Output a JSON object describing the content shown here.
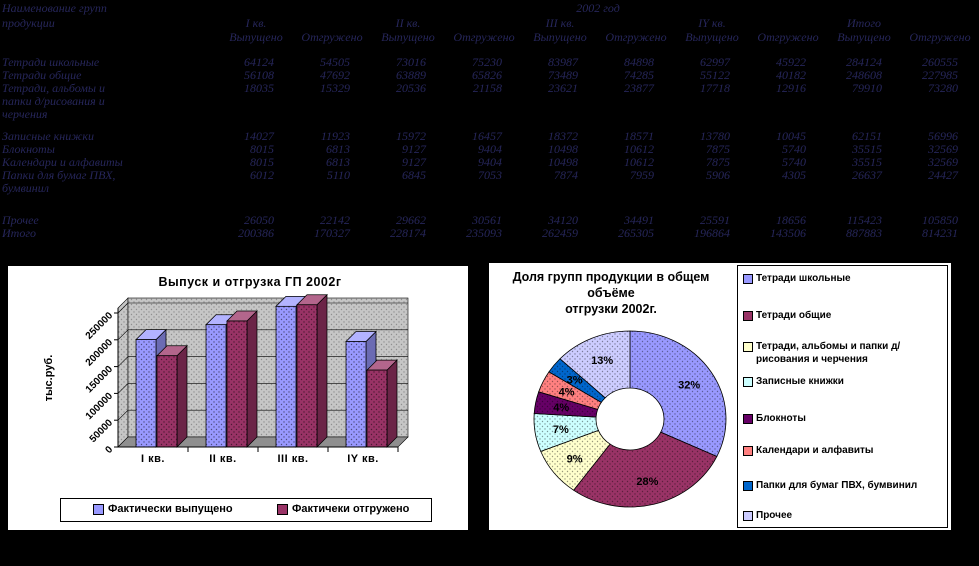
{
  "page": {
    "background": "#000000",
    "table_text_color": "#26265a"
  },
  "table": {
    "name_header_lines": [
      "Наименование групп",
      "продукции"
    ],
    "year_header": "2002 год",
    "quarters": [
      "I кв.",
      "II кв.",
      "III кв.",
      "IY кв.",
      "Итого"
    ],
    "measure_headers": [
      "Выпущено",
      "Отгружено"
    ],
    "rows": [
      {
        "label_lines": [
          "Тетради школьные"
        ],
        "values": [
          64124,
          54505,
          73016,
          75230,
          83987,
          84898,
          62997,
          45922,
          284124,
          260555
        ],
        "gap_after": 0
      },
      {
        "label_lines": [
          "Тетради общие"
        ],
        "values": [
          56108,
          47692,
          63889,
          65826,
          73489,
          74285,
          55122,
          40182,
          248608,
          227985
        ],
        "gap_after": 0
      },
      {
        "label_lines": [
          "Тетради, альбомы и",
          "папки д/рисования и",
          "черчения"
        ],
        "values": [
          18035,
          15329,
          20536,
          21158,
          23621,
          23877,
          17718,
          12916,
          79910,
          73280
        ],
        "gap_after": 9
      },
      {
        "label_lines": [
          "Записные книжки"
        ],
        "values": [
          14027,
          11923,
          15972,
          16457,
          18372,
          18571,
          13780,
          10045,
          62151,
          56996
        ],
        "gap_after": 0
      },
      {
        "label_lines": [
          "Блокноты"
        ],
        "values": [
          8015,
          6813,
          9127,
          9404,
          10498,
          10612,
          7875,
          5740,
          35515,
          32569
        ],
        "gap_after": 0
      },
      {
        "label_lines": [
          "Календари и алфавиты"
        ],
        "values": [
          8015,
          6813,
          9127,
          9404,
          10498,
          10612,
          7875,
          5740,
          35515,
          32569
        ],
        "gap_after": 0
      },
      {
        "label_lines": [
          "Папки для бумаг ПВХ,",
          "бумвинил"
        ],
        "values": [
          6012,
          5110,
          6845,
          7053,
          7874,
          7959,
          5906,
          4305,
          26637,
          24427
        ],
        "gap_after": 19
      },
      {
        "label_lines": [
          "Прочее"
        ],
        "values": [
          26050,
          22142,
          29662,
          30561,
          34120,
          34491,
          25591,
          18656,
          115423,
          105850
        ],
        "gap_after": 0
      },
      {
        "label_lines": [
          "Итого"
        ],
        "values": [
          200386,
          170327,
          228174,
          235093,
          262459,
          265305,
          196864,
          143506,
          887883,
          814231
        ],
        "gap_after": 0
      }
    ]
  },
  "chart_data": [
    {
      "type": "bar",
      "style": "3d",
      "title": "Выпуск и отгрузка ГП 2002г",
      "ylabel": "тыс.руб.",
      "xlabel": "",
      "categories": [
        "I кв.",
        "II кв.",
        "III кв.",
        "IY кв."
      ],
      "series": [
        {
          "name": "Фактически выпущено",
          "color": "#9999FF",
          "values": [
            200386,
            228174,
            262459,
            196864
          ]
        },
        {
          "name": "Фактичеки отгружено",
          "color": "#993366",
          "values": [
            170327,
            235093,
            265305,
            143506
          ]
        }
      ],
      "ylim": [
        0,
        250000
      ],
      "yticks": [
        "0",
        "50000",
        "100000",
        "150000",
        "200000",
        "250000"
      ],
      "grid": true,
      "legend_position": "bottom",
      "wall_color": "#c6c6c6"
    },
    {
      "type": "pie",
      "donut": true,
      "title": "Доля групп продукции в общем объёме отгрузки 2002г.",
      "title_lines": [
        "Доля групп продукции в общем",
        "объёме",
        "отгрузки 2002г."
      ],
      "legend_position": "right",
      "slices": [
        {
          "label": "Тетради школьные",
          "value": 32,
          "percent_label": "32%",
          "color": "#9999FF"
        },
        {
          "label": "Тетради общие",
          "value": 28,
          "percent_label": "28%",
          "color": "#993366"
        },
        {
          "label": "Тетради, альбомы и папки д/рисования и черчения",
          "value": 9,
          "percent_label": "9%",
          "color": "#FFFFCC"
        },
        {
          "label": "Записные книжки",
          "value": 7,
          "percent_label": "7%",
          "color": "#CCFFFF"
        },
        {
          "label": "Блокноты",
          "value": 4,
          "percent_label": "4%",
          "color": "#660066"
        },
        {
          "label": "Календари и алфавиты",
          "value": 4,
          "percent_label": "4%",
          "color": "#FF8080"
        },
        {
          "label": "Папки для бумаг ПВХ, бумвинил",
          "value": 3,
          "percent_label": "3%",
          "color": "#0066CC"
        },
        {
          "label": "Прочее",
          "value": 13,
          "percent_label": "13%",
          "color": "#CCCCFF"
        }
      ]
    }
  ]
}
